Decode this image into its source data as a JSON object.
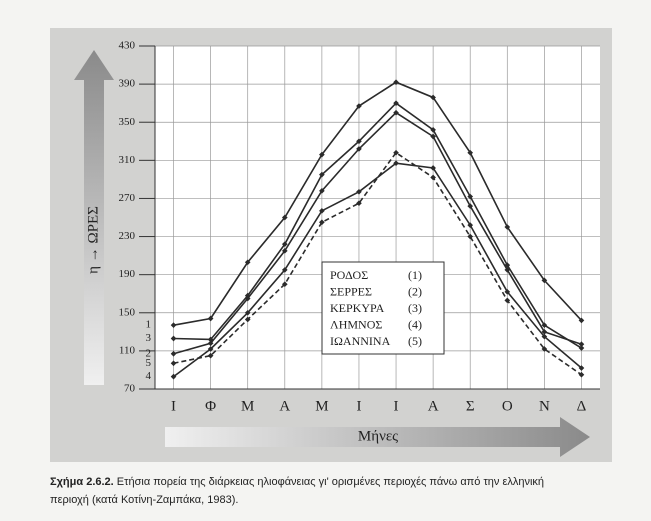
{
  "chart_data": {
    "type": "line",
    "y_label": "η → ΩΡΕΣ",
    "x_label": "Μήνες",
    "categories": [
      "Ι",
      "Φ",
      "Μ",
      "Α",
      "Μ",
      "Ι",
      "Ι",
      "Α",
      "Σ",
      "Ο",
      "Ν",
      "Δ"
    ],
    "ylim": [
      70,
      430
    ],
    "yticks": [
      70,
      110,
      150,
      190,
      230,
      270,
      310,
      350,
      390,
      430
    ],
    "grid": true,
    "series": [
      {
        "name": "ΡΟΔΟΣ",
        "legend_tag": "(1)",
        "line_tag": "1",
        "color": "#2b2b2b",
        "dashed": false,
        "values": [
          137,
          144,
          203,
          250,
          316,
          367,
          392,
          376,
          318,
          240,
          184,
          142
        ]
      },
      {
        "name": "ΣΕΡΡΕΣ",
        "legend_tag": "(2)",
        "line_tag": "2",
        "color": "#2b2b2b",
        "dashed": false,
        "values": [
          107,
          118,
          165,
          215,
          278,
          322,
          360,
          335,
          262,
          195,
          130,
          117
        ]
      },
      {
        "name": "ΚΕΡΚΥΡΑ",
        "legend_tag": "(3)",
        "line_tag": "3",
        "color": "#2b2b2b",
        "dashed": false,
        "values": [
          123,
          122,
          168,
          222,
          295,
          330,
          370,
          342,
          272,
          200,
          137,
          113
        ]
      },
      {
        "name": "ΛΗΜΝΟΣ",
        "legend_tag": "(4)",
        "line_tag": "4",
        "color": "#2b2b2b",
        "dashed": false,
        "values": [
          83,
          112,
          150,
          195,
          257,
          277,
          307,
          302,
          242,
          172,
          125,
          92
        ]
      },
      {
        "name": "ΙΩΑΝΝΙΝΑ",
        "legend_tag": "(5)",
        "line_tag": "5",
        "color": "#2b2b2b",
        "dashed": true,
        "values": [
          97,
          105,
          143,
          180,
          245,
          265,
          318,
          292,
          230,
          163,
          112,
          85
        ]
      }
    ]
  },
  "caption": {
    "label": "Σχήμα 2.6.2.",
    "text": "Ετήσια πορεία της διάρκειας ηλιοφάνειας γι' ορισμένες περιοχές πάνω από την ελληνική",
    "text2": "περιοχή (κατά Κοτίνη-Ζαμπάκα, 1983)."
  }
}
